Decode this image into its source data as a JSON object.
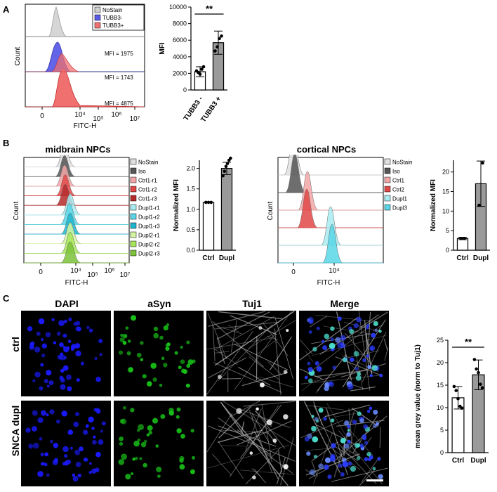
{
  "panels": {
    "A": {
      "letter": "A",
      "histogram": {
        "xlabel": "FITC-H",
        "ylabel": "Count",
        "xticks": [
          "0",
          "10⁴",
          "10⁵",
          "10⁶",
          "10⁷"
        ],
        "legend": [
          {
            "label": "NoStain",
            "color": "#cfcfcf"
          },
          {
            "label": "TUBB3-",
            "color": "#5a5ae6"
          },
          {
            "label": "TUBB3+",
            "color": "#f07070"
          }
        ],
        "mfi_labels": [
          "MFI = 1975",
          "MFI = 1743",
          "MFI = 4875"
        ]
      }
    },
    "B": {
      "letter": "B",
      "midbrain": {
        "title": "midbrain NPCs",
        "xlabel": "FITC-H",
        "ylabel": "Count",
        "xticks": [
          "0",
          "10⁴",
          "10⁵",
          "10⁶",
          "10⁷"
        ],
        "legend": [
          {
            "label": "NoStain",
            "color": "#e0e0e0"
          },
          {
            "label": "Iso",
            "color": "#555555"
          },
          {
            "label": "Ctrl1-r1",
            "color": "#f4a6a6"
          },
          {
            "label": "Ctrl1-r2",
            "color": "#e04848"
          },
          {
            "label": "Ctrl1-r3",
            "color": "#b52a2a"
          },
          {
            "label": "Dupl1-r1",
            "color": "#a8ecf2"
          },
          {
            "label": "Dupl1-r2",
            "color": "#58d6e6"
          },
          {
            "label": "Dupl1-r3",
            "color": "#1fb6cc"
          },
          {
            "label": "Dupl2-r1",
            "color": "#d4f5a0"
          },
          {
            "label": "Dupl2-r2",
            "color": "#a6e65a"
          },
          {
            "label": "Dupl2-r3",
            "color": "#7cc23a"
          }
        ]
      },
      "cortical": {
        "title": "cortical NPCs",
        "xlabel": "FITC-H",
        "ylabel": "Count",
        "xticks": [
          "0",
          "10⁴"
        ],
        "legend": [
          {
            "label": "NoStain",
            "color": "#e0e0e0"
          },
          {
            "label": "Iso",
            "color": "#555555"
          },
          {
            "label": "Ctrl1",
            "color": "#f4a6a6"
          },
          {
            "label": "Ctrl2",
            "color": "#e04848"
          },
          {
            "label": "Dupl1",
            "color": "#a8ecf2"
          },
          {
            "label": "Dupl3",
            "color": "#58d6e6"
          }
        ]
      }
    },
    "C": {
      "letter": "C",
      "columns": [
        "DAPI",
        "aSyn",
        "Tuj1",
        "Merge"
      ],
      "column_colors": [
        "#2323e6",
        "#22c322",
        "#222222",
        "#222222"
      ],
      "rows": [
        "ctrl",
        "SNCA dupl"
      ]
    }
  },
  "chart_data": [
    {
      "id": "A-bar",
      "type": "bar",
      "categories": [
        "TUBB3 -",
        "TUBB3 +"
      ],
      "values": [
        2200,
        5700
      ],
      "errors": [
        600,
        1400
      ],
      "points": [
        [
          2300,
          2100,
          1900,
          2500,
          2800
        ],
        [
          4700,
          5200,
          6200,
          6500
        ]
      ],
      "fills": [
        "#ffffff",
        "#9a9a9a"
      ],
      "ylabel": "MFI",
      "ylim": [
        0,
        10000
      ],
      "yticks": [
        0,
        2000,
        4000,
        6000,
        8000,
        10000
      ],
      "significance": "**"
    },
    {
      "id": "B-midbrain-bar",
      "type": "bar",
      "categories": [
        "Ctrl",
        "Dupl"
      ],
      "values": [
        1.17,
        2.0
      ],
      "errors": [
        0,
        0.15
      ],
      "points": [
        [
          1.17,
          1.17,
          1.17
        ],
        [
          1.82,
          1.93,
          2.05,
          2.12,
          2.2,
          2.25
        ]
      ],
      "fills": [
        "#ffffff",
        "#9a9a9a"
      ],
      "ylabel": "Normalized MFI",
      "ylim": [
        0,
        2.2
      ],
      "yticks": [
        0.0,
        0.5,
        1.0,
        1.5,
        2.0
      ],
      "significance": ""
    },
    {
      "id": "B-cortical-bar",
      "type": "bar",
      "categories": [
        "Ctrl",
        "Dupl"
      ],
      "values": [
        3,
        17
      ],
      "errors": [
        0.3,
        5.8
      ],
      "points": [
        [
          3,
          3
        ],
        [
          11.5,
          22.3
        ]
      ],
      "fills": [
        "#ffffff",
        "#9a9a9a"
      ],
      "ylabel": "Normalized MFI",
      "ylim": [
        0,
        23
      ],
      "yticks": [
        0,
        5,
        10,
        15,
        20
      ],
      "significance": ""
    },
    {
      "id": "C-bar",
      "type": "bar",
      "categories": [
        "Ctrl",
        "Dupl"
      ],
      "values": [
        12.2,
        17.3
      ],
      "errors": [
        2.5,
        3.3
      ],
      "points": [
        [
          14.7,
          13.8,
          12.0,
          10.3,
          9.9
        ],
        [
          20.7,
          18.6,
          17.8,
          15.2,
          14.4
        ]
      ],
      "fills": [
        "#ffffff",
        "#9a9a9a"
      ],
      "ylabel": "mean grey value (norm to Tuj1)",
      "ylim": [
        0,
        25
      ],
      "yticks": [
        0,
        5,
        10,
        15,
        20,
        25
      ],
      "significance": "**"
    }
  ]
}
